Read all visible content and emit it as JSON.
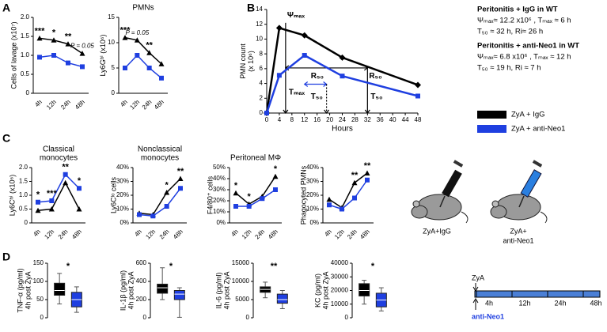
{
  "panel_labels": [
    "A",
    "B",
    "C",
    "D"
  ],
  "chart_data": [
    {
      "type": "line",
      "y_label_lines": [
        "Cells of lavage (x10⁷)"
      ],
      "categories": [
        "4h",
        "12h",
        "24h",
        "48h"
      ],
      "series": [
        {
          "color": "#000000",
          "marker": "triangle",
          "values": [
            1.45,
            1.4,
            1.3,
            1.05
          ]
        },
        {
          "color": "#1f3fe0",
          "marker": "square",
          "values": [
            0.95,
            1.0,
            0.8,
            0.7
          ]
        }
      ],
      "ylim": [
        0,
        2
      ],
      "yticks": [
        0,
        0.5,
        {
          "value": 1,
          "label": "1.0"
        },
        1.5,
        {
          "value": 2,
          "label": "2.0"
        }
      ],
      "significance": [
        "***",
        "*",
        "**",
        "P = 0.05"
      ]
    },
    {
      "type": "line",
      "title_lines": [
        "PMNs"
      ],
      "y_label_lines": [
        "Ly6Gʰⁱ (x10⁶)"
      ],
      "categories": [
        "4h",
        "12h",
        "24h",
        "48h"
      ],
      "series": [
        {
          "color": "#000000",
          "marker": "triangle",
          "values": [
            11,
            10.5,
            8,
            5.8
          ]
        },
        {
          "color": "#1f3fe0",
          "marker": "square",
          "values": [
            5,
            7.5,
            5,
            3
          ]
        }
      ],
      "ylim": [
        0,
        15
      ],
      "yticks": [
        0,
        5,
        10,
        15
      ],
      "significance": [
        "***",
        "P = 0.05",
        "**",
        null
      ]
    },
    {
      "type": "xyline",
      "x_label": "Hours",
      "y_label_lines": [
        "PMN count",
        "(x 10⁶)"
      ],
      "x": [
        0,
        4,
        12,
        24,
        48
      ],
      "series": [
        {
          "name": "ZyA + IgG",
          "color": "#000000",
          "marker": "diamond",
          "values": [
            0,
            11.5,
            10.5,
            7.5,
            3.8
          ]
        },
        {
          "name": "ZyA + anti-Neo1",
          "color": "#1f3fe0",
          "marker": "square",
          "values": [
            0,
            5.1,
            7.8,
            5.0,
            2.3
          ]
        }
      ],
      "xlim": [
        0,
        48
      ],
      "xticks": [
        0,
        4,
        8,
        12,
        16,
        20,
        24,
        28,
        32,
        36,
        40,
        44,
        48
      ],
      "ylim": [
        0,
        14
      ],
      "yticks": [
        0,
        2,
        4,
        6,
        8,
        10,
        12,
        14
      ],
      "arrows": [
        {
          "x": [
            6,
            6
          ],
          "y": [
            12.2,
            0
          ],
          "color": "#000000"
        },
        {
          "x": [
            6,
            32
          ],
          "y": [
            6.1,
            6.1
          ],
          "color": "#000000",
          "both": true
        },
        {
          "x": [
            32,
            32
          ],
          "y": [
            6.1,
            0
          ],
          "color": "#000000"
        },
        {
          "x": [
            12,
            19
          ],
          "y": [
            3.9,
            3.9
          ],
          "color": "#1f3fe0",
          "both": true
        },
        {
          "x": [
            19,
            19
          ],
          "y": [
            3.9,
            0
          ],
          "color": "#000000",
          "dashed": true
        }
      ],
      "annotations": [
        {
          "text": "Ψₘₐₓ",
          "x": 6.5,
          "y": 13.2
        },
        {
          "text": "Tₘₐₓ",
          "x": 7,
          "y": 2.8
        },
        {
          "text": "T₅₀",
          "x": 14,
          "y": 2.2
        },
        {
          "text": "R₅₀",
          "x": 14,
          "y": 5.0
        },
        {
          "text": "R₅₀",
          "x": 32.5,
          "y": 5.0
        },
        {
          "text": "T₅₀",
          "x": 33,
          "y": 2.2
        }
      ]
    },
    {
      "type": "line",
      "title_lines": [
        "Classical",
        "monocytes"
      ],
      "y_label_lines": [
        "Ly6Cʰⁱ (x10⁶)"
      ],
      "categories": [
        "4h",
        "12h",
        "24h",
        "48h"
      ],
      "series": [
        {
          "color": "#000000",
          "marker": "triangle",
          "values": [
            0.45,
            0.5,
            1.45,
            0.5
          ]
        },
        {
          "color": "#1f3fe0",
          "marker": "square",
          "values": [
            0.75,
            0.8,
            1.75,
            1.25
          ]
        }
      ],
      "ylim": [
        0,
        2
      ],
      "yticks": [
        0,
        0.5,
        {
          "value": 1,
          "label": "1.0"
        },
        1.5,
        {
          "value": 2,
          "label": "2.0"
        }
      ],
      "significance": [
        "*",
        "***",
        "**",
        "*"
      ]
    },
    {
      "type": "line",
      "title_lines": [
        "Nonclassical",
        "monocytes"
      ],
      "y_label_lines": [
        "Ly6Cˡᵒ cells"
      ],
      "categories": [
        "4h",
        "12h",
        "24h",
        "48h"
      ],
      "series": [
        {
          "color": "#000000",
          "marker": "triangle",
          "values": [
            7,
            6,
            22,
            32
          ]
        },
        {
          "color": "#1f3fe0",
          "marker": "square",
          "values": [
            6,
            5,
            12,
            25
          ]
        }
      ],
      "ylim": [
        0,
        40
      ],
      "yticks": [
        {
          "value": 0,
          "label": "0%"
        },
        {
          "value": 10,
          "label": "10%"
        },
        {
          "value": 20,
          "label": "20%"
        },
        {
          "value": 30,
          "label": "30%"
        },
        {
          "value": 40,
          "label": "40%"
        }
      ],
      "significance": [
        null,
        null,
        "*",
        "**"
      ]
    },
    {
      "type": "line",
      "title_lines": [
        "Peritoneal MΦ"
      ],
      "y_label_lines": [
        "F4/80⁺ cells"
      ],
      "categories": [
        "4h",
        "12h",
        "24h",
        "48h"
      ],
      "series": [
        {
          "color": "#000000",
          "marker": "triangle",
          "values": [
            27,
            17,
            24,
            42
          ]
        },
        {
          "color": "#1f3fe0",
          "marker": "square",
          "values": [
            15,
            15,
            22,
            30
          ]
        }
      ],
      "ylim": [
        0,
        50
      ],
      "yticks": [
        {
          "value": 0,
          "label": "0%"
        },
        {
          "value": 10,
          "label": "10%"
        },
        {
          "value": 20,
          "label": "20%"
        },
        {
          "value": 30,
          "label": "30%"
        },
        {
          "value": 40,
          "label": "40%"
        },
        {
          "value": 50,
          "label": "50%"
        }
      ],
      "significance": [
        "*",
        "*",
        null,
        "*"
      ]
    },
    {
      "type": "line",
      "y_label_lines": [
        "Phagocyted PMNs"
      ],
      "categories": [
        "4h",
        "12h",
        "24h",
        "48h"
      ],
      "series": [
        {
          "color": "#000000",
          "marker": "triangle",
          "values": [
            17,
            11,
            29,
            36
          ]
        },
        {
          "color": "#1f3fe0",
          "marker": "square",
          "values": [
            13,
            10,
            18,
            31
          ]
        }
      ],
      "ylim": [
        0,
        40
      ],
      "yticks": [
        {
          "value": 0,
          "label": "0%"
        },
        {
          "value": 10,
          "label": "10%"
        },
        {
          "value": 20,
          "label": "20%"
        },
        {
          "value": 30,
          "label": "30%"
        },
        {
          "value": 40,
          "label": "40%"
        }
      ],
      "significance": [
        null,
        null,
        "**",
        "**"
      ]
    },
    {
      "type": "box",
      "y_label_lines": [
        "TNF-α (pg/ml)",
        "4h post ZyA"
      ],
      "boxes": [
        {
          "color": "#000000",
          "min": 38,
          "q1": 62,
          "median": 75,
          "q3": 95,
          "max": 122
        },
        {
          "color": "#1f3fe0",
          "min": 15,
          "q1": 30,
          "median": 50,
          "q3": 70,
          "max": 85
        }
      ],
      "ylim": [
        0,
        150
      ],
      "yticks": [
        0,
        50,
        100,
        150
      ],
      "significance": "*"
    },
    {
      "type": "box",
      "y_label_lines": [
        "IL-1β (pg/ml)",
        "4h post ZyA"
      ],
      "boxes": [
        {
          "color": "#000000",
          "min": 200,
          "q1": 270,
          "median": 330,
          "q3": 370,
          "max": 550
        },
        {
          "color": "#1f3fe0",
          "min": 5,
          "q1": 200,
          "median": 260,
          "q3": 300,
          "max": 330
        }
      ],
      "ylim": [
        0,
        600
      ],
      "yticks": [
        0,
        200,
        400,
        600
      ],
      "significance": "*"
    },
    {
      "type": "box",
      "y_label_lines": [
        "IL-6 (pg/ml)",
        "4h post ZyA"
      ],
      "boxes": [
        {
          "color": "#000000",
          "min": 5500,
          "q1": 7000,
          "median": 7800,
          "q3": 8500,
          "max": 9800
        },
        {
          "color": "#1f3fe0",
          "min": 2500,
          "q1": 4000,
          "median": 5000,
          "q3": 6500,
          "max": 7500
        }
      ],
      "ylim": [
        0,
        15000
      ],
      "yticks": [
        0,
        5000,
        10000,
        15000
      ],
      "significance": "**"
    },
    {
      "type": "box",
      "y_label_lines": [
        "KC (pg/ml)",
        "4h post ZyA"
      ],
      "boxes": [
        {
          "color": "#000000",
          "min": 10000,
          "q1": 16000,
          "median": 20000,
          "q3": 25000,
          "max": 27500
        },
        {
          "color": "#1f3fe0",
          "min": 5000,
          "q1": 8000,
          "median": 13000,
          "q3": 18000,
          "max": 22000
        }
      ],
      "ylim": [
        0,
        40000
      ],
      "yticks": [
        0,
        10000,
        20000,
        30000,
        40000
      ],
      "significance": "*"
    }
  ],
  "b_notes": [
    "Peritonitis + IgG in WT",
    "Ψₘₐₓ≈ 12.2 x10⁶ ,   Tₘₐₓ ≈ 6 h",
    "T₅₀ ≈ 32 h,   Ri≈ 26 h",
    "Peritonitis + anti-Neo1 in WT",
    "Ψₘₐₓ≈ 6.8 x10⁶ ,   Tₘₐₓ ≈ 12 h",
    "T₅₀ ≈ 19 h,   Ri ≈ 7 h"
  ],
  "illustration_labels": [
    [
      "ZyA+IgG"
    ],
    [
      "ZyA+",
      "anti-Neo1"
    ]
  ],
  "timeline": {
    "top_label": "ZyA",
    "bottom_label": "anti-Neo1",
    "ticks": [
      "4h",
      "12h",
      "24h",
      "48h"
    ]
  }
}
